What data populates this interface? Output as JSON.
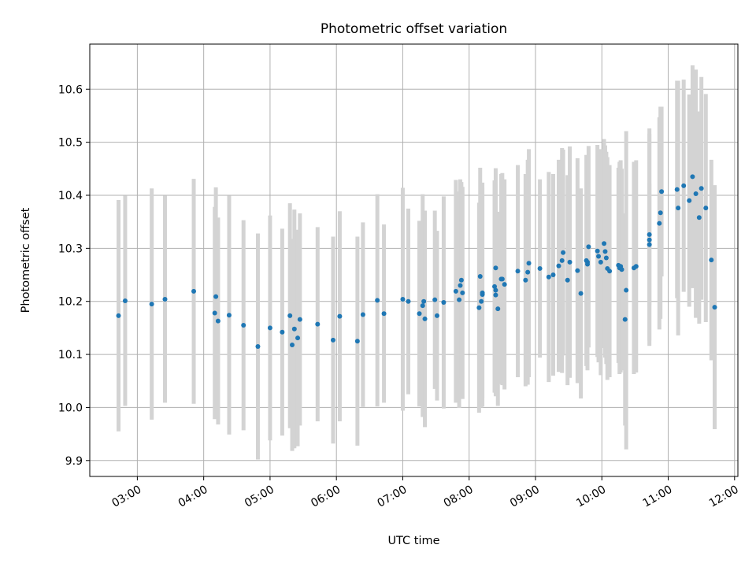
{
  "chart_data": {
    "type": "scatter",
    "title": "Photometric offset variation",
    "xlabel": "UTC time",
    "ylabel": "Photometric offset",
    "xlim": [
      "02:17",
      "12:03"
    ],
    "ylim": [
      9.87,
      10.685
    ],
    "grid": true,
    "legend": "none",
    "x_ticks": [
      "03:00",
      "04:00",
      "05:00",
      "06:00",
      "07:00",
      "08:00",
      "09:00",
      "10:00",
      "11:00",
      "12:00"
    ],
    "y_ticks": [
      9.9,
      10.0,
      10.1,
      10.2,
      10.3,
      10.4,
      10.5,
      10.6
    ],
    "y_tick_labels": [
      "9.9",
      "10.0",
      "10.1",
      "10.2",
      "10.3",
      "10.4",
      "10.5",
      "10.6"
    ],
    "colors": {
      "point": "#1f77b4",
      "errorbar": "#d3d3d3",
      "grid": "#b0b0b0"
    },
    "series": [
      {
        "points": [
          [
            "02:43",
            10.173,
            0.218
          ],
          [
            "02:49",
            10.201,
            0.198
          ],
          [
            "03:13",
            10.195,
            0.218
          ],
          [
            "03:25",
            10.204,
            0.195
          ],
          [
            "03:51",
            10.219,
            0.212
          ],
          [
            "04:10",
            10.178,
            0.2
          ],
          [
            "04:11",
            10.209,
            0.206
          ],
          [
            "04:13",
            10.163,
            0.195
          ],
          [
            "04:23",
            10.174,
            0.225
          ],
          [
            "04:36",
            10.155,
            0.198
          ],
          [
            "04:49",
            10.115,
            0.213
          ],
          [
            "05:00",
            10.15,
            0.212
          ],
          [
            "05:11",
            10.142,
            0.195
          ],
          [
            "05:18",
            10.173,
            0.212
          ],
          [
            "05:20",
            10.118,
            0.2
          ],
          [
            "05:22",
            10.148,
            0.225
          ],
          [
            "05:25",
            10.131,
            0.204
          ],
          [
            "05:27",
            10.166,
            0.2
          ],
          [
            "05:43",
            10.157,
            0.183
          ],
          [
            "05:57",
            10.127,
            0.195
          ],
          [
            "06:03",
            10.172,
            0.198
          ],
          [
            "06:19",
            10.125,
            0.197
          ],
          [
            "06:24",
            10.175,
            0.174
          ],
          [
            "06:37",
            10.202,
            0.2
          ],
          [
            "06:43",
            10.177,
            0.168
          ],
          [
            "07:00",
            10.204,
            0.21
          ],
          [
            "07:05",
            10.2,
            0.175
          ],
          [
            "07:15",
            10.177,
            0.175
          ],
          [
            "07:18",
            10.192,
            0.21
          ],
          [
            "07:19",
            10.2,
            0.16
          ],
          [
            "07:20",
            10.167,
            0.204
          ],
          [
            "07:29",
            10.203,
            0.168
          ],
          [
            "07:31",
            10.173,
            0.16
          ],
          [
            "07:37",
            10.198,
            0.2
          ],
          [
            "07:48",
            10.219,
            0.21
          ],
          [
            "07:51",
            10.203,
            0.204
          ],
          [
            "07:52",
            10.23,
            0.2
          ],
          [
            "07:53",
            10.24,
            0.185
          ],
          [
            "07:54",
            10.216,
            0.2
          ],
          [
            "08:09",
            10.188,
            0.198
          ],
          [
            "08:10",
            10.247,
            0.205
          ],
          [
            "08:11",
            10.2,
            0.2
          ],
          [
            "08:12",
            10.213,
            0.211
          ],
          [
            "08:12",
            10.216,
            0.198
          ],
          [
            "08:23",
            10.228,
            0.2
          ],
          [
            "08:24",
            10.263,
            0.188
          ],
          [
            "08:24",
            10.212,
            0.186
          ],
          [
            "08:24",
            10.221,
            0.2
          ],
          [
            "08:26",
            10.186,
            0.183
          ],
          [
            "08:29",
            10.242,
            0.198
          ],
          [
            "08:30",
            10.242,
            0.2
          ],
          [
            "08:32",
            10.232,
            0.198
          ],
          [
            "08:44",
            10.257,
            0.2
          ],
          [
            "08:51",
            10.24,
            0.2
          ],
          [
            "08:53",
            10.255,
            0.212
          ],
          [
            "08:54",
            10.272,
            0.215
          ],
          [
            "09:04",
            10.262,
            0.168
          ],
          [
            "09:12",
            10.246,
            0.198
          ],
          [
            "09:16",
            10.25,
            0.19
          ],
          [
            "09:21",
            10.267,
            0.2
          ],
          [
            "09:24",
            10.277,
            0.212
          ],
          [
            "09:25",
            10.292,
            0.194
          ],
          [
            "09:29",
            10.24,
            0.198
          ],
          [
            "09:31",
            10.274,
            0.218
          ],
          [
            "09:38",
            10.258,
            0.212
          ],
          [
            "09:41",
            10.215,
            0.198
          ],
          [
            "09:46",
            10.277,
            0.199
          ],
          [
            "09:47",
            10.274,
            0.2
          ],
          [
            "09:47",
            10.27,
            0.2
          ],
          [
            "09:48",
            10.303,
            0.19
          ],
          [
            "09:56",
            10.295,
            0.2
          ],
          [
            "09:57",
            10.285,
            0.2
          ],
          [
            "09:59",
            10.274,
            0.213
          ],
          [
            "10:02",
            10.309,
            0.197
          ],
          [
            "10:03",
            10.294,
            0.2
          ],
          [
            "10:04",
            10.282,
            0.2
          ],
          [
            "10:05",
            10.262,
            0.21
          ],
          [
            "10:07",
            10.257,
            0.2
          ],
          [
            "10:15",
            10.268,
            0.184
          ],
          [
            "10:16",
            10.263,
            0.2
          ],
          [
            "10:17",
            10.266,
            0.2
          ],
          [
            "10:18",
            10.26,
            0.19
          ],
          [
            "10:21",
            10.166,
            0.2
          ],
          [
            "10:22",
            10.221,
            0.3
          ],
          [
            "10:29",
            10.263,
            0.2
          ],
          [
            "10:31",
            10.266,
            0.2
          ],
          [
            "10:43",
            10.307,
            0.115
          ],
          [
            "10:43",
            10.316,
            0.2
          ],
          [
            "10:43",
            10.326,
            0.2
          ],
          [
            "10:52",
            10.347,
            0.2
          ],
          [
            "10:53",
            10.367,
            0.2
          ],
          [
            "10:54",
            10.407,
            0.16
          ],
          [
            "11:08",
            10.411,
            0.205
          ],
          [
            "11:09",
            10.376,
            0.24
          ],
          [
            "11:14",
            10.418,
            0.2
          ],
          [
            "11:19",
            10.39,
            0.2
          ],
          [
            "11:22",
            10.435,
            0.21
          ],
          [
            "11:25",
            10.403,
            0.234
          ],
          [
            "11:28",
            10.358,
            0.2
          ],
          [
            "11:30",
            10.413,
            0.21
          ],
          [
            "11:34",
            10.376,
            0.215
          ],
          [
            "11:39",
            10.278,
            0.189
          ],
          [
            "11:42",
            10.189,
            0.23
          ]
        ]
      }
    ]
  }
}
